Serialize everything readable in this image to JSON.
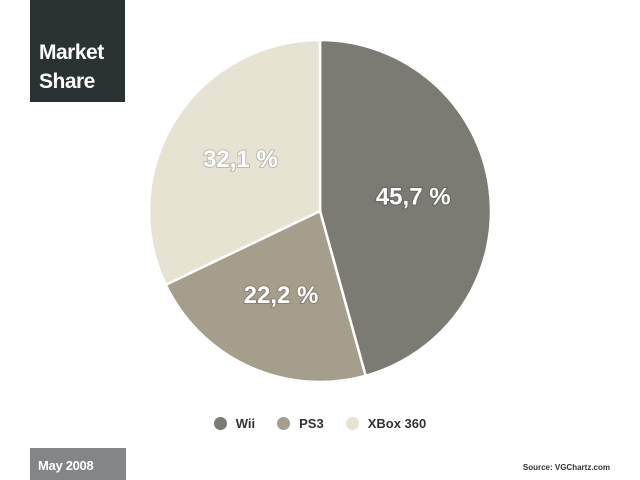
{
  "header": {
    "title_line1": "Market",
    "title_line2": "Share"
  },
  "footer": {
    "date": "May 2008",
    "source": "Source: VGChartz.com"
  },
  "chart_data": {
    "type": "pie",
    "title": "Market Share",
    "categories": [
      "Wii",
      "PS3",
      "XBox 360"
    ],
    "values": [
      45.7,
      22.2,
      32.1
    ],
    "value_labels": [
      "45,7 %",
      "22,2 %",
      "32,1 %"
    ],
    "colors": [
      "#7c7b73",
      "#a69e8d",
      "#e6e3d3"
    ],
    "start_angle_deg": 0,
    "direction": "clockwise",
    "legend_placement": "bottom"
  }
}
